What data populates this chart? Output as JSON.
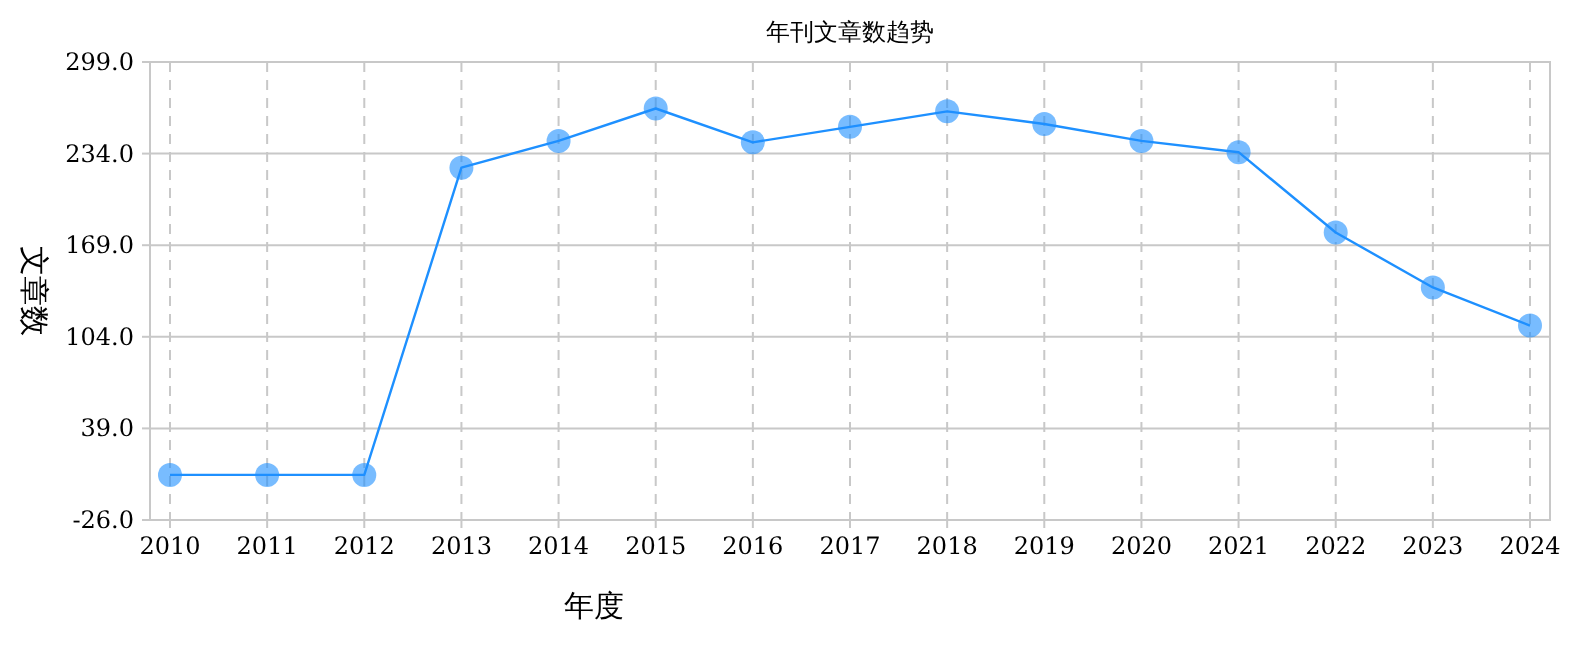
{
  "chart_data": {
    "type": "line",
    "title": "年刊文章数趋势",
    "xlabel": "年度",
    "ylabel": "文章数",
    "categories": [
      "2010",
      "2011",
      "2012",
      "2013",
      "2014",
      "2015",
      "2016",
      "2017",
      "2018",
      "2019",
      "2020",
      "2021",
      "2022",
      "2023",
      "2024"
    ],
    "series": [
      {
        "color": "#1e90ff",
        "values": [
          6,
          6,
          6,
          224,
          243,
          266,
          242,
          253,
          264,
          255,
          243,
          235,
          178,
          139,
          112
        ]
      }
    ],
    "ylim": [
      -26,
      299
    ],
    "yticks": [
      {
        "value": -26,
        "label": "-26.0"
      },
      {
        "value": 39,
        "label": "39.0"
      },
      {
        "value": 104,
        "label": "104.0"
      },
      {
        "value": 169,
        "label": "169.0"
      },
      {
        "value": 234,
        "label": "234.0"
      },
      {
        "value": 299,
        "label": "299.0"
      }
    ],
    "grid": true,
    "marker": "circle",
    "line_style": "solid"
  }
}
